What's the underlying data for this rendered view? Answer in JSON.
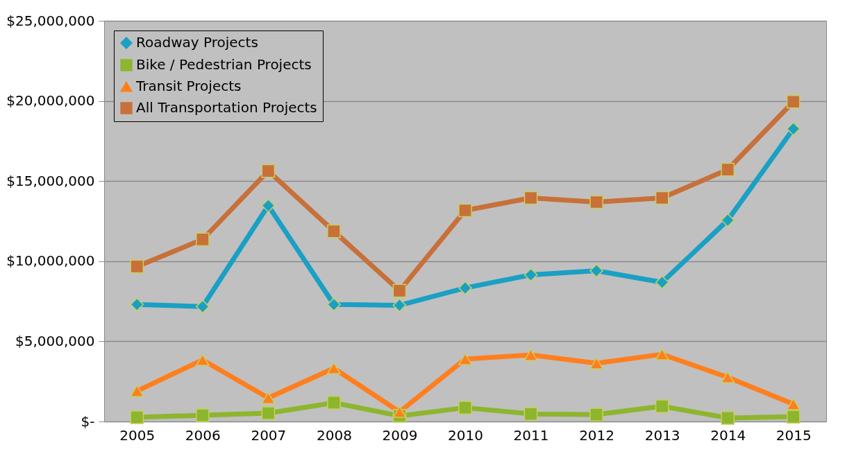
{
  "chart_data": {
    "type": "line",
    "categories": [
      "2005",
      "2006",
      "2007",
      "2008",
      "2009",
      "2010",
      "2011",
      "2012",
      "2013",
      "2014",
      "2015"
    ],
    "series": [
      {
        "name": "Roadway Projects",
        "color": "#1aa0c4",
        "marker": "diamond",
        "values": [
          7300000,
          7170000,
          13470000,
          7300000,
          7250000,
          8330000,
          9150000,
          9410000,
          8680000,
          12560000,
          18260000
        ]
      },
      {
        "name": "Bike / Pedestrian Projects",
        "color": "#8db52e",
        "marker": "square",
        "values": [
          260000,
          390000,
          520000,
          1170000,
          350000,
          860000,
          470000,
          430000,
          950000,
          220000,
          300000
        ]
      },
      {
        "name": "Transit Projects",
        "color": "#ff7f1e",
        "marker": "triangle",
        "values": [
          1900000,
          3840000,
          1470000,
          3320000,
          600000,
          3890000,
          4150000,
          3630000,
          4190000,
          2760000,
          1080000
        ]
      },
      {
        "name": "All Transportation Projects",
        "color": "#c8703a",
        "marker": "square",
        "values": [
          9670000,
          11360000,
          15630000,
          11870000,
          8160000,
          13170000,
          13950000,
          13690000,
          13950000,
          15720000,
          19950000
        ]
      }
    ],
    "ylim": [
      0,
      25000000
    ],
    "yticks": [
      {
        "value": 0,
        "label": "$-"
      },
      {
        "value": 5000000,
        "label": "$5,000,000"
      },
      {
        "value": 10000000,
        "label": "$10,000,000"
      },
      {
        "value": 15000000,
        "label": "$15,000,000"
      },
      {
        "value": 20000000,
        "label": "$20,000,000"
      },
      {
        "value": 25000000,
        "label": "$25,000,000"
      }
    ],
    "grid": "y",
    "legend": "top left",
    "line_style": "solid"
  }
}
